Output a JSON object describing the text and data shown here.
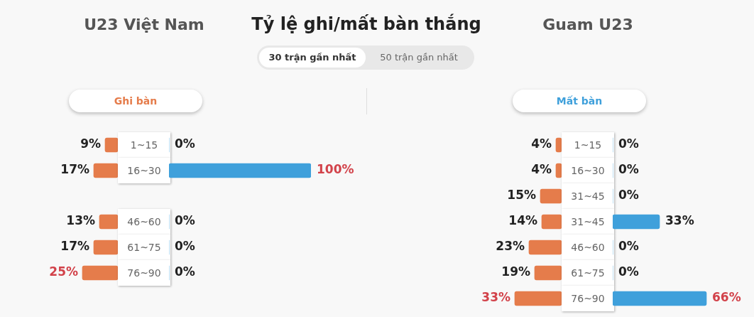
{
  "chart_data": [
    {
      "type": "bar",
      "orientation": "horizontal",
      "title": "U23 Việt Nam",
      "subtitle": "Ghi bàn",
      "categories": [
        "1~15",
        "16~30",
        null,
        "46~60",
        "61~75",
        "76~90"
      ],
      "tick_labels": "y",
      "series": [
        {
          "color": "#e57c4b",
          "values": [
            9,
            17,
            null,
            13,
            17,
            25
          ],
          "value_labels": [
            "9%",
            "17%",
            null,
            "13%",
            "17%",
            "25%"
          ]
        }
      ]
    },
    {
      "type": "bar",
      "orientation": "horizontal",
      "categories": [
        null,
        null,
        null,
        null,
        null,
        null
      ],
      "tick_labels": false,
      "series": [
        {
          "color": "#3fa0db",
          "values": [
            0,
            100,
            null,
            0,
            0,
            0
          ],
          "value_labels": [
            "0%",
            "100%",
            null,
            "0%",
            "0%",
            "0%"
          ]
        }
      ]
    },
    {
      "type": "other",
      "title": "Tỷ lệ ghi/mất bàn thắng",
      "annotations": [
        "30 trận gần nhất",
        "50 trận gần nhất"
      ]
    },
    {
      "type": "bar",
      "orientation": "horizontal",
      "title": "Guam U23",
      "subtitle": "Mất bàn",
      "categories": [
        "1~15",
        "16~30",
        "31~45",
        "31~45",
        "46~60",
        "61~75",
        "76~90"
      ],
      "tick_labels": "y",
      "series": [
        {
          "color": "#e57c4b",
          "values": [
            4,
            4,
            15,
            14,
            23,
            19,
            33
          ],
          "value_labels": [
            "4%",
            "4%",
            "15%",
            "14%",
            "23%",
            "19%",
            "33%"
          ]
        }
      ]
    },
    {
      "type": "bar",
      "orientation": "horizontal",
      "categories": [
        null,
        null,
        null,
        null,
        null,
        null,
        null
      ],
      "tick_labels": false,
      "series": [
        {
          "color": "#3fa0db",
          "values": [
            0,
            0,
            0,
            33,
            0,
            0,
            66
          ],
          "value_labels": [
            "0%",
            "0%",
            "0%",
            "33%",
            "0%",
            "0%",
            "66%"
          ]
        }
      ]
    }
  ]
}
